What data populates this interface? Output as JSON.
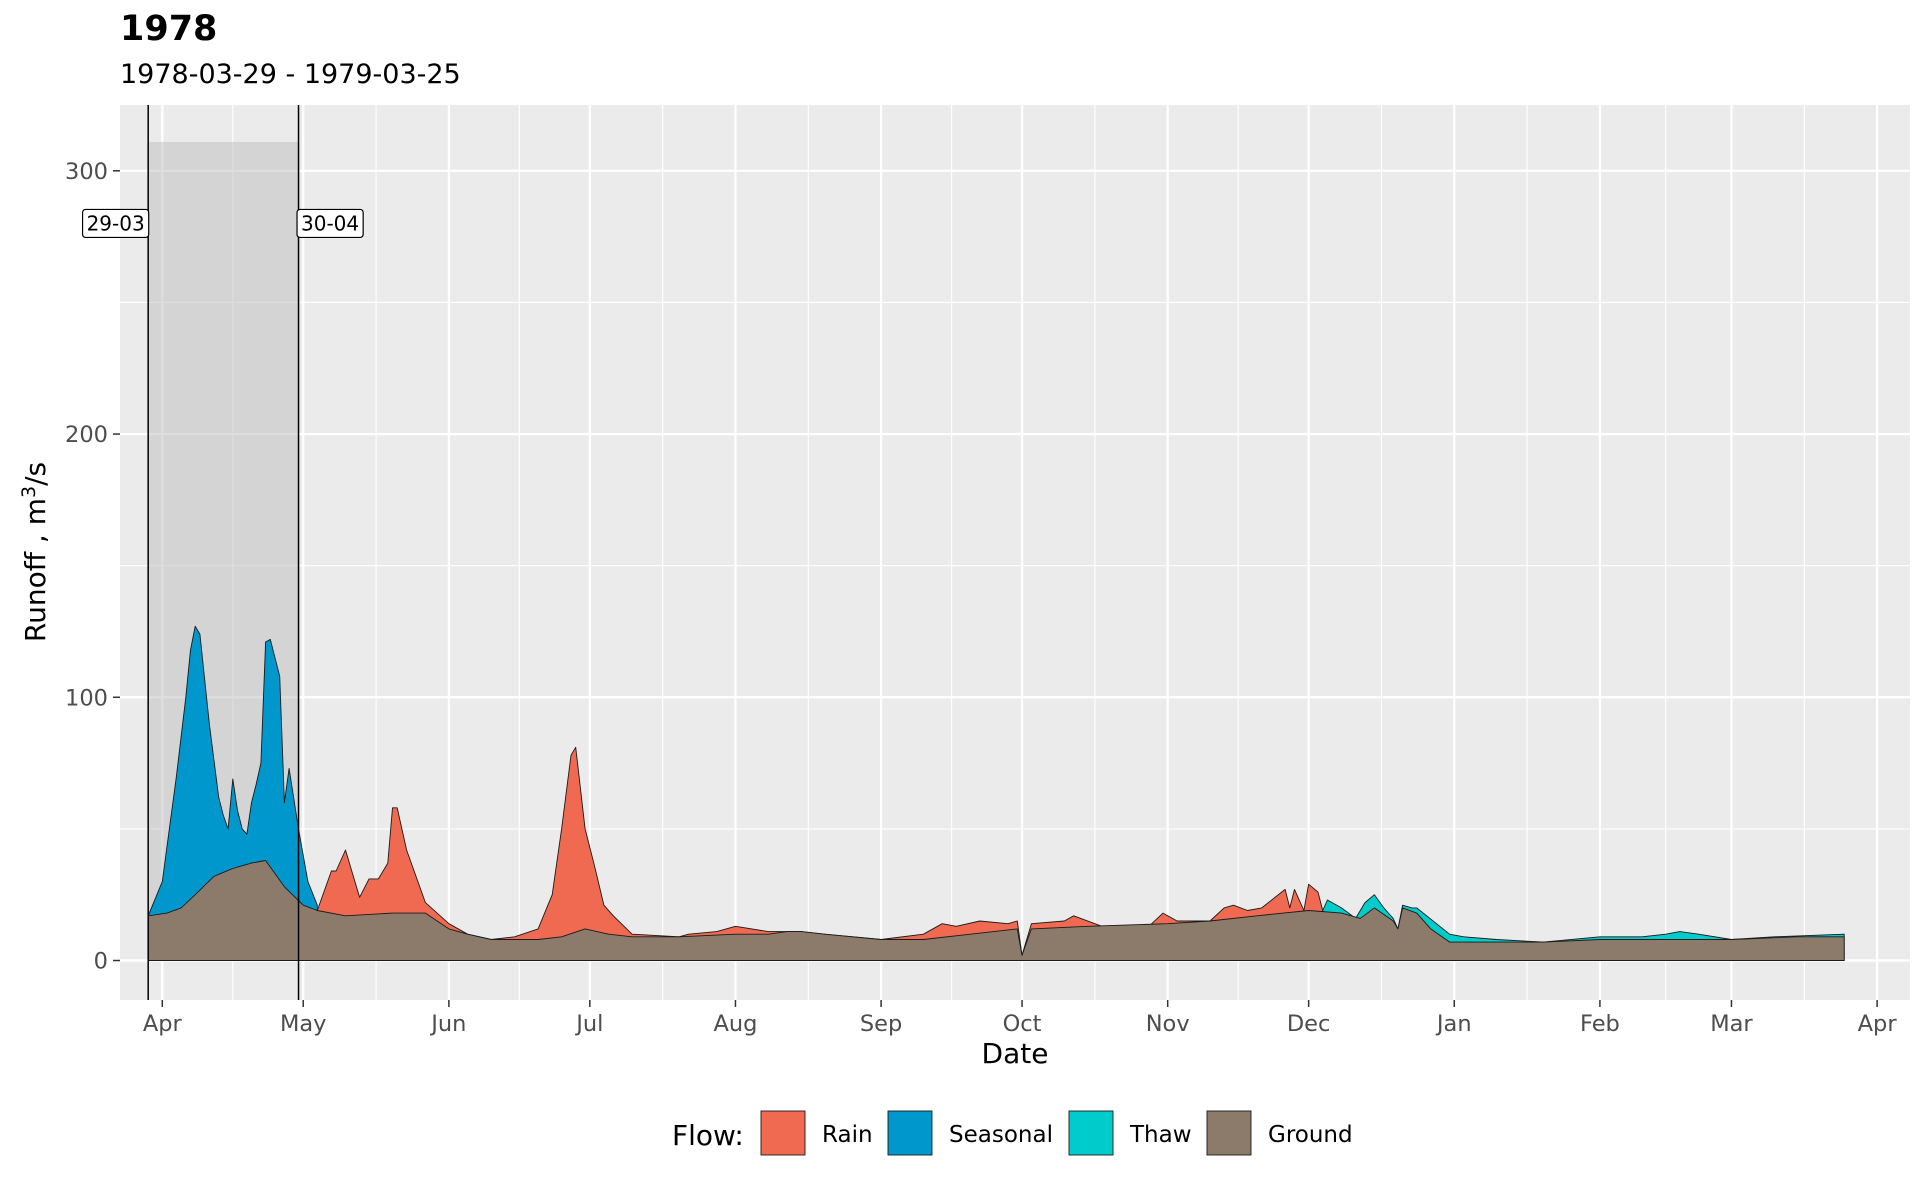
{
  "chart_data": {
    "type": "area",
    "title": "1978",
    "subtitle": "1978-03-29 - 1979-03-25",
    "xlabel": "Date",
    "ylabel_main": "Runoff ,  m",
    "ylabel_sup": "3",
    "ylabel_tail": "/s",
    "x_range": [
      "1978-03-23",
      "1979-04-08"
    ],
    "ylim": [
      -15,
      325
    ],
    "yticks": [
      0,
      100,
      200,
      300
    ],
    "x_ticks": [
      {
        "label": "Apr",
        "date": "1978-04-01"
      },
      {
        "label": "May",
        "date": "1978-05-01"
      },
      {
        "label": "Jun",
        "date": "1978-06-01"
      },
      {
        "label": "Jul",
        "date": "1978-07-01"
      },
      {
        "label": "Aug",
        "date": "1978-08-01"
      },
      {
        "label": "Sep",
        "date": "1978-09-01"
      },
      {
        "label": "Oct",
        "date": "1978-10-01"
      },
      {
        "label": "Nov",
        "date": "1978-11-01"
      },
      {
        "label": "Dec",
        "date": "1978-12-01"
      },
      {
        "label": "Jan",
        "date": "1979-01-01"
      },
      {
        "label": "Feb",
        "date": "1979-02-01"
      },
      {
        "label": "Mar",
        "date": "1979-03-01"
      },
      {
        "label": "Apr",
        "date": "1979-04-01"
      }
    ],
    "grid": true,
    "legend": {
      "title": "Flow:",
      "position": "bottom"
    },
    "highlight_period": {
      "start": "1978-03-29",
      "end": "1978-04-30",
      "ymax": 311
    },
    "annotations": [
      {
        "label": "29-03",
        "date": "1978-03-29",
        "y": 280
      },
      {
        "label": "30-04",
        "date": "1978-04-30",
        "y": 280
      }
    ],
    "series": [
      {
        "name": "Ground",
        "color": "#8c7b6b",
        "points": [
          [
            "1978-03-29",
            0
          ],
          [
            "1978-03-29",
            17
          ],
          [
            "1978-04-02",
            18
          ],
          [
            "1978-04-05",
            20
          ],
          [
            "1978-04-08",
            25
          ],
          [
            "1978-04-12",
            32
          ],
          [
            "1978-04-16",
            35
          ],
          [
            "1978-04-20",
            37
          ],
          [
            "1978-04-23",
            38
          ],
          [
            "1978-04-27",
            28
          ],
          [
            "1978-05-01",
            21
          ],
          [
            "1978-05-04",
            19
          ],
          [
            "1978-05-10",
            17
          ],
          [
            "1978-05-20",
            18
          ],
          [
            "1978-05-27",
            18
          ],
          [
            "1978-06-01",
            12
          ],
          [
            "1978-06-05",
            10
          ],
          [
            "1978-06-10",
            8
          ],
          [
            "1978-06-20",
            8
          ],
          [
            "1978-06-25",
            9
          ],
          [
            "1978-06-30",
            12
          ],
          [
            "1978-07-05",
            10
          ],
          [
            "1978-07-10",
            9
          ],
          [
            "1978-07-20",
            9
          ],
          [
            "1978-08-01",
            10
          ],
          [
            "1978-08-08",
            10
          ],
          [
            "1978-08-12",
            11
          ],
          [
            "1978-08-15",
            11
          ],
          [
            "1978-08-20",
            10
          ],
          [
            "1978-09-01",
            8
          ],
          [
            "1978-09-10",
            8
          ],
          [
            "1978-09-20",
            10
          ],
          [
            "1978-09-30",
            12
          ],
          [
            "1978-10-01",
            2
          ],
          [
            "1978-10-03",
            12
          ],
          [
            "1978-10-15",
            13
          ],
          [
            "1978-11-01",
            14
          ],
          [
            "1978-11-10",
            15
          ],
          [
            "1978-11-20",
            17
          ],
          [
            "1978-12-01",
            19
          ],
          [
            "1978-12-08",
            18
          ],
          [
            "1978-12-12",
            16
          ],
          [
            "1978-12-15",
            20
          ],
          [
            "1978-12-19",
            15
          ],
          [
            "1978-12-20",
            12
          ],
          [
            "1978-12-21",
            20
          ],
          [
            "1978-12-24",
            18
          ],
          [
            "1978-12-27",
            12
          ],
          [
            "1978-12-31",
            7
          ],
          [
            "1979-01-10",
            7
          ],
          [
            "1979-01-20",
            7
          ],
          [
            "1979-02-01",
            8
          ],
          [
            "1979-02-15",
            8
          ],
          [
            "1979-03-01",
            8
          ],
          [
            "1979-03-15",
            9
          ],
          [
            "1979-03-25",
            9
          ],
          [
            "1979-03-25",
            0
          ]
        ]
      },
      {
        "name": "Rain",
        "color": "#ef6a50",
        "points": [
          [
            "1978-05-01",
            21
          ],
          [
            "1978-05-04",
            19
          ],
          [
            "1978-05-07",
            34
          ],
          [
            "1978-05-08",
            34
          ],
          [
            "1978-05-10",
            42
          ],
          [
            "1978-05-13",
            24
          ],
          [
            "1978-05-15",
            31
          ],
          [
            "1978-05-17",
            31
          ],
          [
            "1978-05-19",
            37
          ],
          [
            "1978-05-20",
            58
          ],
          [
            "1978-05-21",
            58
          ],
          [
            "1978-05-23",
            42
          ],
          [
            "1978-05-27",
            22
          ],
          [
            "1978-06-01",
            14
          ],
          [
            "1978-06-05",
            10
          ],
          [
            "1978-06-10",
            8
          ],
          [
            "1978-06-15",
            9
          ],
          [
            "1978-06-20",
            12
          ],
          [
            "1978-06-23",
            25
          ],
          [
            "1978-06-25",
            50
          ],
          [
            "1978-06-27",
            78
          ],
          [
            "1978-06-28",
            81
          ],
          [
            "1978-06-30",
            50
          ],
          [
            "1978-07-02",
            36
          ],
          [
            "1978-07-04",
            21
          ],
          [
            "1978-07-06",
            17
          ],
          [
            "1978-07-10",
            10
          ],
          [
            "1978-07-20",
            9
          ],
          [
            "1978-07-22",
            10
          ],
          [
            "1978-07-28",
            11
          ],
          [
            "1978-08-01",
            13
          ],
          [
            "1978-08-08",
            11
          ],
          [
            "1978-08-15",
            11
          ],
          [
            "1978-08-20",
            10
          ],
          [
            "1978-09-01",
            8
          ],
          [
            "1978-09-10",
            10
          ],
          [
            "1978-09-14",
            14
          ],
          [
            "1978-09-17",
            13
          ],
          [
            "1978-09-22",
            15
          ],
          [
            "1978-09-28",
            14
          ],
          [
            "1978-09-30",
            15
          ],
          [
            "1978-10-01",
            2
          ],
          [
            "1978-10-03",
            14
          ],
          [
            "1978-10-10",
            15
          ],
          [
            "1978-10-12",
            17
          ],
          [
            "1978-10-18",
            13
          ],
          [
            "1978-10-22",
            13
          ],
          [
            "1978-10-28",
            13
          ],
          [
            "1978-10-31",
            18
          ],
          [
            "1978-11-03",
            15
          ],
          [
            "1978-11-10",
            15
          ],
          [
            "1978-11-13",
            20
          ],
          [
            "1978-11-15",
            21
          ],
          [
            "1978-11-18",
            19
          ],
          [
            "1978-11-21",
            20
          ],
          [
            "1978-11-26",
            27
          ],
          [
            "1978-11-27",
            20
          ],
          [
            "1978-11-28",
            27
          ],
          [
            "1978-11-30",
            19
          ],
          [
            "1978-12-01",
            29
          ],
          [
            "1978-12-03",
            26
          ],
          [
            "1978-12-04",
            19
          ]
        ]
      },
      {
        "name": "Seasonal",
        "color": "#0097cc",
        "points": [
          [
            "1978-03-29",
            17
          ],
          [
            "1978-04-01",
            30
          ],
          [
            "1978-04-04",
            70
          ],
          [
            "1978-04-06",
            100
          ],
          [
            "1978-04-07",
            118
          ],
          [
            "1978-04-08",
            127
          ],
          [
            "1978-04-09",
            124
          ],
          [
            "1978-04-11",
            90
          ],
          [
            "1978-04-13",
            62
          ],
          [
            "1978-04-14",
            55
          ],
          [
            "1978-04-15",
            50
          ],
          [
            "1978-04-16",
            69
          ],
          [
            "1978-04-17",
            57
          ],
          [
            "1978-04-18",
            50
          ],
          [
            "1978-04-19",
            48
          ],
          [
            "1978-04-20",
            60
          ],
          [
            "1978-04-21",
            67
          ],
          [
            "1978-04-22",
            75
          ],
          [
            "1978-04-23",
            121
          ],
          [
            "1978-04-24",
            122
          ],
          [
            "1978-04-25",
            115
          ],
          [
            "1978-04-26",
            108
          ],
          [
            "1978-04-27",
            60
          ],
          [
            "1978-04-28",
            73
          ],
          [
            "1978-04-30",
            50
          ],
          [
            "1978-05-02",
            30
          ],
          [
            "1978-05-04",
            21
          ]
        ]
      },
      {
        "name": "Thaw",
        "color": "#00cccc",
        "points": [
          [
            "1978-12-04",
            19
          ],
          [
            "1978-12-05",
            23
          ],
          [
            "1978-12-08",
            20
          ],
          [
            "1978-12-11",
            16
          ],
          [
            "1978-12-13",
            22
          ],
          [
            "1978-12-15",
            25
          ],
          [
            "1978-12-17",
            20
          ],
          [
            "1978-12-19",
            16
          ],
          [
            "1978-12-20",
            12
          ],
          [
            "1978-12-21",
            21
          ],
          [
            "1978-12-23",
            20
          ],
          [
            "1978-12-24",
            20
          ],
          [
            "1978-12-31",
            10
          ],
          [
            "1979-01-03",
            9
          ],
          [
            "1979-01-10",
            8
          ],
          [
            "1979-01-20",
            7
          ],
          [
            "1979-02-01",
            9
          ],
          [
            "1979-02-10",
            9
          ],
          [
            "1979-02-15",
            10
          ],
          [
            "1979-02-18",
            11
          ],
          [
            "1979-02-22",
            10
          ],
          [
            "1979-03-01",
            8
          ],
          [
            "1979-03-10",
            9
          ],
          [
            "1979-03-25",
            10
          ]
        ]
      }
    ]
  }
}
